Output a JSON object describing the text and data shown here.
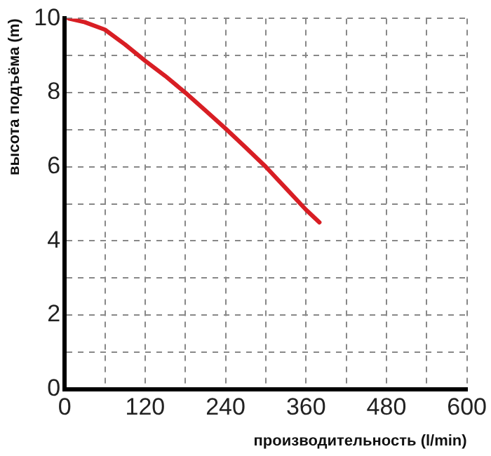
{
  "chart_data": {
    "type": "line",
    "xlabel": "производительность (l/min)",
    "ylabel": "высота подъёма (m)",
    "x": [
      6,
      30,
      60,
      90,
      120,
      150,
      180,
      210,
      240,
      270,
      300,
      330,
      360,
      380
    ],
    "series": [
      {
        "color": "#d81e24",
        "values": [
          10,
          9.9,
          9.7,
          9.3,
          8.86,
          8.45,
          8.0,
          7.52,
          7.03,
          6.52,
          6.0,
          5.42,
          4.84,
          4.5
        ]
      }
    ],
    "xlim": [
      0,
      600
    ],
    "xticks": [
      0,
      {
        "value": 60,
        "label": null
      },
      120,
      {
        "value": 180,
        "label": null
      },
      240,
      {
        "value": 300,
        "label": null
      },
      360,
      {
        "value": 420,
        "label": null
      },
      480,
      {
        "value": 540,
        "label": null
      },
      600
    ],
    "ylim": [
      0,
      10
    ],
    "yticks": [
      0,
      {
        "value": 1,
        "label": null
      },
      2,
      {
        "value": 3,
        "label": null
      },
      4,
      {
        "value": 5,
        "label": null
      },
      6,
      {
        "value": 7,
        "label": null
      },
      8,
      {
        "value": 9,
        "label": null
      },
      10
    ],
    "grid": true,
    "legend": false,
    "marker": "none",
    "line_style": "solid"
  }
}
